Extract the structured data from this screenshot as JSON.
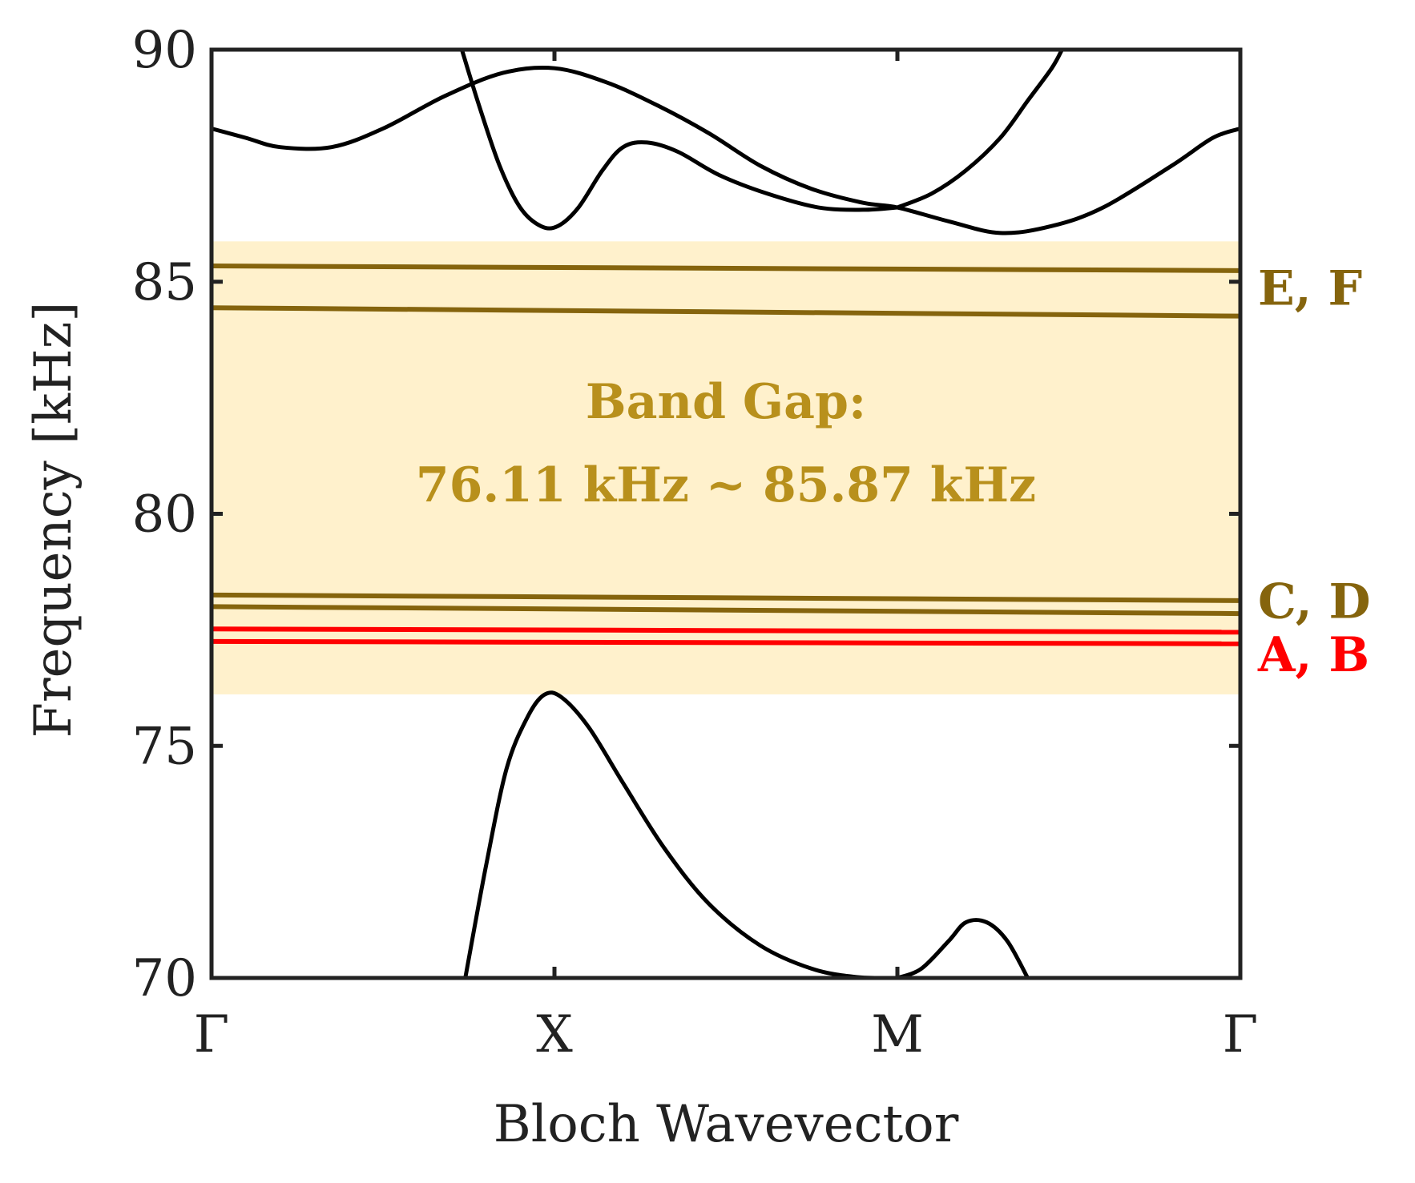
{
  "chart_data": {
    "type": "line",
    "title": "",
    "xlabel": "Bloch Wavevector",
    "ylabel": "Frequency [kHz]",
    "ylim": [
      70,
      90
    ],
    "xlim": [
      0,
      3
    ],
    "yticks": [
      70,
      75,
      80,
      85,
      90
    ],
    "xticks": [
      {
        "value": 0,
        "label": "Γ"
      },
      {
        "value": 1,
        "label": "X"
      },
      {
        "value": 2,
        "label": "M"
      },
      {
        "value": 3,
        "label": "Γ"
      }
    ],
    "band_gap": {
      "min": 76.11,
      "max": 85.87,
      "color": "#FFF1CC",
      "text_color": "#B8901C",
      "label_line1": "Band Gap:",
      "label_line2": "76.11 kHz ~ 85.87 kHz"
    },
    "bulk_series": [
      {
        "name": "band-lower-1",
        "color": "#000000",
        "points": [
          [
            0.74,
            70.0
          ],
          [
            0.8,
            72.4
          ],
          [
            0.86,
            74.5
          ],
          [
            0.92,
            75.6
          ],
          [
            0.97,
            76.1
          ],
          [
            1.02,
            76.05
          ],
          [
            1.1,
            75.4
          ],
          [
            1.2,
            74.2
          ],
          [
            1.32,
            72.8
          ],
          [
            1.45,
            71.6
          ],
          [
            1.6,
            70.7
          ],
          [
            1.75,
            70.2
          ],
          [
            1.88,
            70.02
          ],
          [
            2.0,
            70.0
          ]
        ]
      },
      {
        "name": "band-lower-2",
        "color": "#000000",
        "points": [
          [
            2.0,
            70.0
          ],
          [
            2.07,
            70.2
          ],
          [
            2.15,
            70.8
          ],
          [
            2.2,
            71.2
          ],
          [
            2.26,
            71.2
          ],
          [
            2.32,
            70.8
          ],
          [
            2.38,
            70.0
          ]
        ]
      },
      {
        "name": "band-upper-1",
        "color": "#000000",
        "points": [
          [
            0.0,
            88.3
          ],
          [
            0.1,
            88.1
          ],
          [
            0.2,
            87.9
          ],
          [
            0.35,
            87.9
          ],
          [
            0.5,
            88.3
          ],
          [
            0.68,
            89.0
          ],
          [
            0.85,
            89.5
          ],
          [
            1.0,
            89.6
          ],
          [
            1.15,
            89.3
          ],
          [
            1.3,
            88.8
          ],
          [
            1.45,
            88.2
          ],
          [
            1.6,
            87.5
          ],
          [
            1.75,
            87.0
          ],
          [
            1.9,
            86.7
          ],
          [
            2.0,
            86.6
          ],
          [
            2.15,
            86.3
          ],
          [
            2.3,
            86.05
          ],
          [
            2.45,
            86.2
          ],
          [
            2.6,
            86.6
          ],
          [
            2.8,
            87.5
          ],
          [
            2.92,
            88.1
          ],
          [
            3.0,
            88.3
          ]
        ]
      },
      {
        "name": "band-upper-2",
        "color": "#000000",
        "points": [
          [
            0.73,
            90.0
          ],
          [
            0.78,
            88.8
          ],
          [
            0.84,
            87.5
          ],
          [
            0.9,
            86.6
          ],
          [
            0.96,
            86.2
          ],
          [
            1.01,
            86.2
          ],
          [
            1.07,
            86.6
          ],
          [
            1.14,
            87.4
          ],
          [
            1.2,
            87.9
          ],
          [
            1.27,
            88.0
          ],
          [
            1.36,
            87.8
          ],
          [
            1.48,
            87.3
          ],
          [
            1.62,
            86.9
          ],
          [
            1.77,
            86.6
          ],
          [
            1.9,
            86.55
          ],
          [
            2.0,
            86.6
          ]
        ]
      },
      {
        "name": "band-upper-3",
        "color": "#000000",
        "points": [
          [
            2.0,
            86.6
          ],
          [
            2.1,
            86.9
          ],
          [
            2.2,
            87.4
          ],
          [
            2.3,
            88.1
          ],
          [
            2.38,
            88.9
          ],
          [
            2.45,
            89.6
          ],
          [
            2.48,
            90.0
          ]
        ]
      }
    ],
    "localized_modes": [
      {
        "name": "mode-F",
        "color": "#85640D",
        "points": [
          [
            0,
            85.34
          ],
          [
            3,
            85.24
          ]
        ]
      },
      {
        "name": "mode-E",
        "color": "#85640D",
        "points": [
          [
            0,
            84.44
          ],
          [
            3,
            84.26
          ]
        ]
      },
      {
        "name": "mode-D",
        "color": "#85640D",
        "points": [
          [
            0,
            78.25
          ],
          [
            3,
            78.13
          ]
        ]
      },
      {
        "name": "mode-C",
        "color": "#85640D",
        "points": [
          [
            0,
            78.0
          ],
          [
            3,
            77.85
          ]
        ]
      },
      {
        "name": "mode-B",
        "color": "#FF0000",
        "points": [
          [
            0,
            77.52
          ],
          [
            3,
            77.45
          ]
        ]
      },
      {
        "name": "mode-A",
        "color": "#FF0000",
        "points": [
          [
            0,
            77.25
          ],
          [
            3,
            77.2
          ]
        ]
      }
    ],
    "mode_labels": [
      {
        "text": "E, F",
        "y": 84.85,
        "color": "#85640D"
      },
      {
        "text": "C, D",
        "y": 78.1,
        "color": "#85640D"
      },
      {
        "text": "A, B",
        "y": 76.95,
        "color": "#FF0000"
      }
    ]
  }
}
